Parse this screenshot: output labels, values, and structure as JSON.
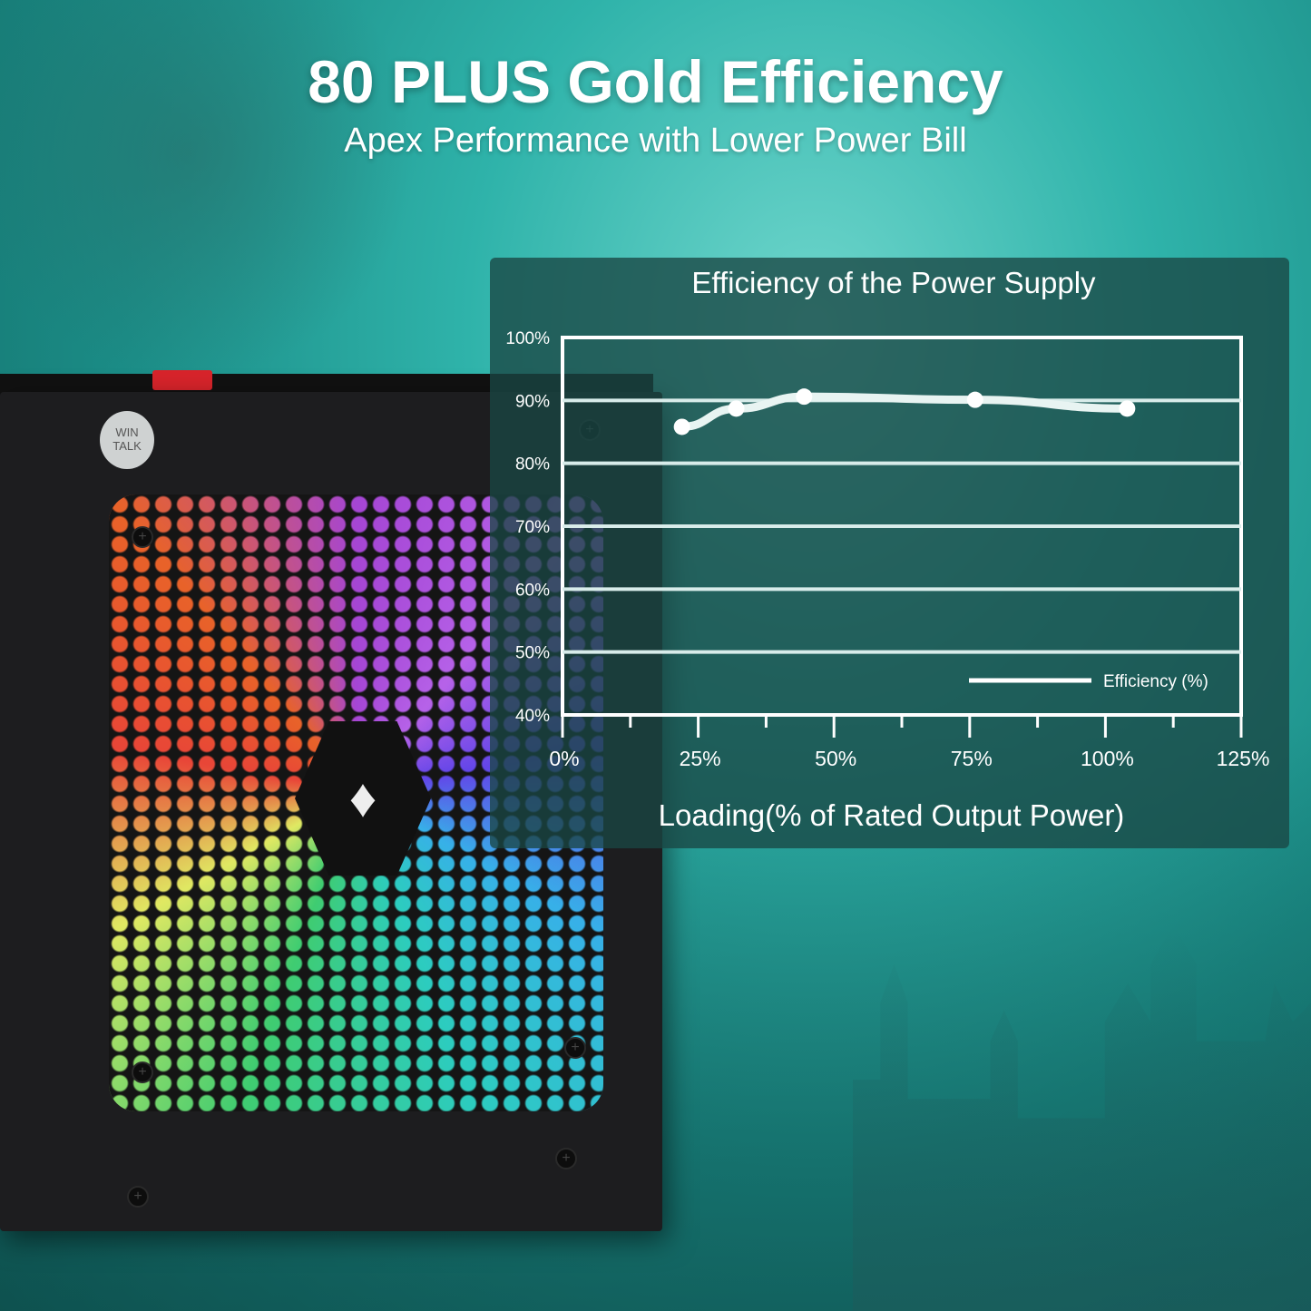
{
  "headline": "80 PLUS Gold Efficiency",
  "subheadline": "Apex Performance with Lower Power Bill",
  "product": {
    "badge_text": "WIN TALK",
    "logo": "dragon-logo",
    "switch_color": "#d8242b"
  },
  "chart_data": {
    "type": "line",
    "title": "Efficiency of the Power Supply",
    "xlabel": "Loading(% of Rated Output Power)",
    "ylabel": "",
    "xlim": [
      0,
      125
    ],
    "ylim": [
      40,
      100
    ],
    "x_ticks": [
      "0%",
      "25%",
      "50%",
      "75%",
      "100%",
      "125%"
    ],
    "y_ticks": [
      "100%",
      "90%",
      "80%",
      "70%",
      "60%",
      "50%",
      "40%"
    ],
    "grid": true,
    "legend": "bottom-right",
    "series": [
      {
        "name": "Efficiency (%)",
        "x": [
          22,
          32,
          44.5,
          76,
          104
        ],
        "y": [
          85.8,
          88.7,
          90.6,
          90.1,
          88.7
        ],
        "color": "#ffffff"
      }
    ]
  }
}
